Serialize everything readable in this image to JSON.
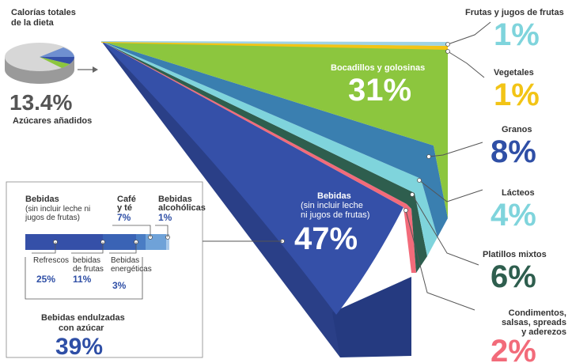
{
  "pie_inset": {
    "title_line1": "Calorías totales",
    "title_line2": "de la dieta",
    "percent": "13.4%",
    "caption": "Azúcares añadidos",
    "share_percent": 13.4
  },
  "categories": [
    {
      "id": "frutas",
      "label": "Frutas y jugos de frutas",
      "value": "1%",
      "color": "#f2c416"
    },
    {
      "id": "vegetales",
      "label": "Vegetales",
      "value": "1%",
      "color": "#f2c416"
    },
    {
      "id": "bocadillos",
      "label": "Bocadillos y golosinas",
      "value": "31%",
      "color": "#8cc63e"
    },
    {
      "id": "granos",
      "label": "Granos",
      "value": "8%",
      "color": "#2f4fa6"
    },
    {
      "id": "lacteos",
      "label": "Lácteos",
      "value": "4%",
      "color": "#7fd4dc"
    },
    {
      "id": "platillos",
      "label": "Platillos mixtos",
      "value": "6%",
      "color": "#2e5e4e"
    },
    {
      "id": "condimentos",
      "label_lines": [
        "Condimentos,",
        "salsas, spreads",
        "y aderezos"
      ],
      "value": "2%",
      "color": "#f26b7a"
    }
  ],
  "bebidas_wedge": {
    "title": "Bebidas",
    "sub_line1": "(sin incluir leche",
    "sub_line2": "ni jugos de frutas)",
    "value": "47%"
  },
  "breakdown_box": {
    "title": "Bebidas",
    "sub_line1": "(sin incluir leche ni",
    "sub_line2": "jugos de frutas)",
    "cafe_line1": "Café",
    "cafe_line2": "y té",
    "cafe_value": "7%",
    "alcohol_line1": "Bebidas",
    "alcohol_line2": "alcohólicas",
    "alcohol_value": "1%",
    "refrescos_label": "Refrescos",
    "refrescos_value": "25%",
    "frutas_line1": "bebidas",
    "frutas_line2": "de frutas",
    "frutas_value": "11%",
    "energeticas_line1": "Bebidas",
    "energeticas_line2": "energéticas",
    "energeticas_value": "3%",
    "endulzadas_line1": "Bebidas endulzadas",
    "endulzadas_line2": "con azúcar",
    "endulzadas_value": "39%"
  },
  "chart_data": {
    "type": "pie",
    "title": "Calorías totales de la dieta",
    "categories": [
      "Frutas y jugos de frutas",
      "Vegetales",
      "Bocadillos y golosinas",
      "Granos",
      "Lácteos",
      "Platillos mixtos",
      "Condimentos, salsas, spreads y aderezos",
      "Bebidas (sin incluir leche ni jugos de frutas)"
    ],
    "values": [
      1,
      1,
      31,
      8,
      4,
      6,
      2,
      47
    ],
    "colors": [
      "#9fd3e4",
      "#f2c416",
      "#8cc63e",
      "#3a7fb0",
      "#7fd4dc",
      "#2e5e4e",
      "#f26b7a",
      "#3550a8"
    ],
    "total_added_sugar_share": 13.4,
    "sub_breakdown": {
      "parent": "Bebidas (sin incluir leche ni jugos de frutas)",
      "categories": [
        "Refrescos",
        "bebidas de frutas",
        "Bebidas energéticas",
        "Café y té",
        "Bebidas alcohólicas"
      ],
      "values": [
        25,
        11,
        3,
        7,
        1
      ],
      "group_total": {
        "label": "Bebidas endulzadas con azúcar",
        "value": 39
      }
    }
  }
}
